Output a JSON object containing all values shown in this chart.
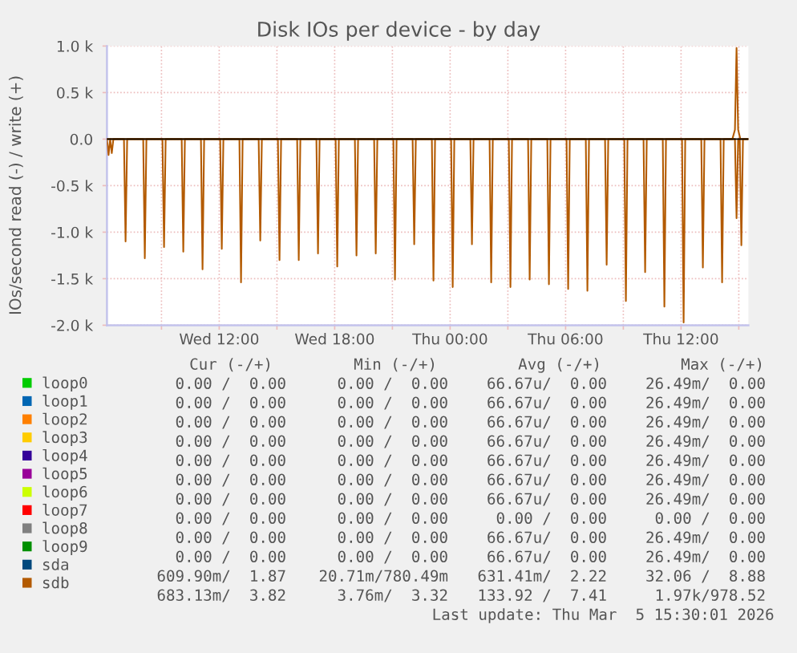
{
  "chart_data": [
    {
      "type": "line",
      "title": "Disk IOs per device - by day",
      "ylabel": "IOs/second read (-) / write (+)",
      "xlim": [
        "2026-03-04T06:10",
        "2026-03-05T15:30"
      ],
      "xticks": [
        {
          "value": "2026-03-04T09:00",
          "label": null
        },
        {
          "value": "2026-03-04T12:00",
          "label": "Wed 12:00"
        },
        {
          "value": "2026-03-04T15:00",
          "label": null
        },
        {
          "value": "2026-03-04T18:00",
          "label": "Wed 18:00"
        },
        {
          "value": "2026-03-04T21:00",
          "label": null
        },
        {
          "value": "2026-03-05T00:00",
          "label": "Thu 00:00"
        },
        {
          "value": "2026-03-05T03:00",
          "label": null
        },
        {
          "value": "2026-03-05T06:00",
          "label": "Thu 06:00"
        },
        {
          "value": "2026-03-05T09:00",
          "label": null
        },
        {
          "value": "2026-03-05T12:00",
          "label": "Thu 12:00"
        },
        {
          "value": "2026-03-05T15:00",
          "label": null
        }
      ],
      "ylim": [
        -2000,
        1000
      ],
      "yticks": [
        {
          "value": -2000,
          "label": "-2.0 k"
        },
        {
          "value": -1500,
          "label": "-1.5 k"
        },
        {
          "value": -1000,
          "label": "-1.0 k"
        },
        {
          "value": -500,
          "label": "-0.5 k"
        },
        {
          "value": 0,
          "label": "0.0"
        },
        {
          "value": 500,
          "label": "0.5 k"
        },
        {
          "value": 1000,
          "label": "1.0 k"
        }
      ],
      "grid": true,
      "legend": "bottom",
      "ref_lines": [
        {
          "axis": "y",
          "value": 0,
          "color": "#000000"
        }
      ],
      "series": [
        {
          "name": "loop0",
          "color": "#00cc00",
          "values": [
            null
          ]
        },
        {
          "name": "loop1",
          "color": "#0066b3",
          "values": [
            null
          ]
        },
        {
          "name": "loop2",
          "color": "#ff8000",
          "values": [
            null
          ]
        },
        {
          "name": "loop3",
          "color": "#ffcc00",
          "values": [
            null
          ]
        },
        {
          "name": "loop4",
          "color": "#330099",
          "values": [
            null
          ]
        },
        {
          "name": "loop5",
          "color": "#990099",
          "values": [
            null
          ]
        },
        {
          "name": "loop6",
          "color": "#ccff00",
          "values": [
            null
          ]
        },
        {
          "name": "loop7",
          "color": "#ff0000",
          "values": [
            null
          ]
        },
        {
          "name": "loop8",
          "color": "#808080",
          "values": [
            null
          ]
        },
        {
          "name": "loop9",
          "color": "#008f00",
          "values": [
            null
          ]
        },
        {
          "name": "sda",
          "color": "#00487d",
          "values": [
            null
          ]
        },
        {
          "name": "sdb",
          "color": "#b35a00",
          "x": [
            "2026-03-04T06:10",
            "2026-03-04T06:15",
            "2026-03-04T06:20",
            "2026-03-04T06:25",
            "2026-03-04T06:30",
            "2026-03-04T07:03",
            "2026-03-04T07:08",
            "2026-03-04T07:13",
            "2026-03-04T08:03",
            "2026-03-04T08:08",
            "2026-03-04T08:13",
            "2026-03-04T09:03",
            "2026-03-04T09:08",
            "2026-03-04T09:13",
            "2026-03-04T10:03",
            "2026-03-04T10:08",
            "2026-03-04T10:13",
            "2026-03-04T11:03",
            "2026-03-04T11:08",
            "2026-03-04T11:13",
            "2026-03-04T12:03",
            "2026-03-04T12:08",
            "2026-03-04T12:13",
            "2026-03-04T13:03",
            "2026-03-04T13:08",
            "2026-03-04T13:13",
            "2026-03-04T14:03",
            "2026-03-04T14:08",
            "2026-03-04T14:13",
            "2026-03-04T15:03",
            "2026-03-04T15:08",
            "2026-03-04T15:13",
            "2026-03-04T16:03",
            "2026-03-04T16:08",
            "2026-03-04T16:13",
            "2026-03-04T17:03",
            "2026-03-04T17:08",
            "2026-03-04T17:13",
            "2026-03-04T18:03",
            "2026-03-04T18:08",
            "2026-03-04T18:13",
            "2026-03-04T19:03",
            "2026-03-04T19:08",
            "2026-03-04T19:13",
            "2026-03-04T20:03",
            "2026-03-04T20:08",
            "2026-03-04T20:13",
            "2026-03-04T21:03",
            "2026-03-04T21:08",
            "2026-03-04T21:13",
            "2026-03-04T22:03",
            "2026-03-04T22:08",
            "2026-03-04T22:13",
            "2026-03-04T23:03",
            "2026-03-04T23:08",
            "2026-03-04T23:13",
            "2026-03-05T00:03",
            "2026-03-05T00:08",
            "2026-03-05T00:13",
            "2026-03-05T01:03",
            "2026-03-05T01:08",
            "2026-03-05T01:13",
            "2026-03-05T02:03",
            "2026-03-05T02:08",
            "2026-03-05T02:13",
            "2026-03-05T03:03",
            "2026-03-05T03:08",
            "2026-03-05T03:13",
            "2026-03-05T04:03",
            "2026-03-05T04:08",
            "2026-03-05T04:13",
            "2026-03-05T05:03",
            "2026-03-05T05:08",
            "2026-03-05T05:13",
            "2026-03-05T06:03",
            "2026-03-05T06:08",
            "2026-03-05T06:13",
            "2026-03-05T07:03",
            "2026-03-05T07:08",
            "2026-03-05T07:13",
            "2026-03-05T08:03",
            "2026-03-05T08:08",
            "2026-03-05T08:13",
            "2026-03-05T09:03",
            "2026-03-05T09:08",
            "2026-03-05T09:13",
            "2026-03-05T10:03",
            "2026-03-05T10:08",
            "2026-03-05T10:13",
            "2026-03-05T11:03",
            "2026-03-05T11:08",
            "2026-03-05T11:13",
            "2026-03-05T12:03",
            "2026-03-05T12:08",
            "2026-03-05T12:13",
            "2026-03-05T13:03",
            "2026-03-05T13:08",
            "2026-03-05T13:13",
            "2026-03-05T14:03",
            "2026-03-05T14:08",
            "2026-03-05T14:13",
            "2026-03-05T14:48",
            "2026-03-05T14:53",
            "2026-03-05T14:58",
            "2026-03-05T15:03",
            "2026-03-05T15:08",
            "2026-03-05T15:13",
            "2026-03-05T15:30"
          ],
          "values": [
            0,
            -170,
            0,
            -150,
            0,
            0,
            -1100,
            0,
            0,
            -1280,
            0,
            0,
            -1160,
            0,
            0,
            -1210,
            0,
            0,
            -1400,
            0,
            0,
            -1180,
            0,
            0,
            -1540,
            0,
            0,
            -1090,
            0,
            0,
            -1300,
            0,
            0,
            -1300,
            0,
            0,
            -1230,
            0,
            0,
            -1370,
            0,
            0,
            -1250,
            0,
            0,
            -1230,
            0,
            0,
            -1510,
            0,
            0,
            -1130,
            0,
            0,
            -1520,
            0,
            0,
            -1590,
            0,
            0,
            -1130,
            0,
            0,
            -1540,
            0,
            0,
            -1590,
            0,
            0,
            -1510,
            0,
            0,
            -1560,
            0,
            0,
            -1610,
            0,
            0,
            -1630,
            0,
            0,
            -1350,
            0,
            0,
            -1740,
            0,
            0,
            -1430,
            0,
            0,
            -1800,
            0,
            0,
            -1970,
            0,
            0,
            -1380,
            0,
            0,
            -1540,
            0,
            0,
            -850,
            0,
            0,
            -1140,
            0,
            0
          ]
        },
        {
          "color": "#b35a00",
          "x": [
            "2026-03-04T06:10",
            "2026-03-05T14:40",
            "2026-03-05T14:48",
            "2026-03-05T14:53",
            "2026-03-05T14:58",
            "2026-03-05T15:05",
            "2026-03-05T15:30"
          ],
          "values": [
            0,
            0,
            100,
            980,
            100,
            0,
            0
          ]
        }
      ]
    },
    {
      "type": "other",
      "categories": [
        "Cur (-/+)",
        "Min (-/+)",
        "Avg (-/+)",
        "Max (-/+)"
      ],
      "cell_labels": [
        [
          "0.00 /  0.00",
          "0.00 /  0.00",
          "66.67u/  0.00",
          "26.49m/  0.00"
        ],
        [
          "0.00 /  0.00",
          "0.00 /  0.00",
          "66.67u/  0.00",
          "26.49m/  0.00"
        ],
        [
          "0.00 /  0.00",
          "0.00 /  0.00",
          "66.67u/  0.00",
          "26.49m/  0.00"
        ],
        [
          "0.00 /  0.00",
          "0.00 /  0.00",
          "66.67u/  0.00",
          "26.49m/  0.00"
        ],
        [
          "0.00 /  0.00",
          "0.00 /  0.00",
          "66.67u/  0.00",
          "26.49m/  0.00"
        ],
        [
          "0.00 /  0.00",
          "0.00 /  0.00",
          "66.67u/  0.00",
          "26.49m/  0.00"
        ],
        [
          "0.00 /  0.00",
          "0.00 /  0.00",
          "66.67u/  0.00",
          "26.49m/  0.00"
        ],
        [
          "0.00 /  0.00",
          "0.00 /  0.00",
          "0.00 /  0.00",
          "0.00 /  0.00"
        ],
        [
          "0.00 /  0.00",
          "0.00 /  0.00",
          "66.67u/  0.00",
          "26.49m/  0.00"
        ],
        [
          "0.00 /  0.00",
          "0.00 /  0.00",
          "66.67u/  0.00",
          "26.49m/  0.00"
        ],
        [
          "609.90m/  1.87",
          "20.71m/780.49m",
          "631.41m/  2.22",
          "32.06 /  8.88"
        ],
        [
          "683.13m/  3.82",
          "3.76m/  3.32",
          "133.92 /  7.41",
          "1.97k/978.52"
        ]
      ],
      "annotations": [
        "Last update: Thu Mar  5 15:30:01 2026"
      ]
    }
  ]
}
